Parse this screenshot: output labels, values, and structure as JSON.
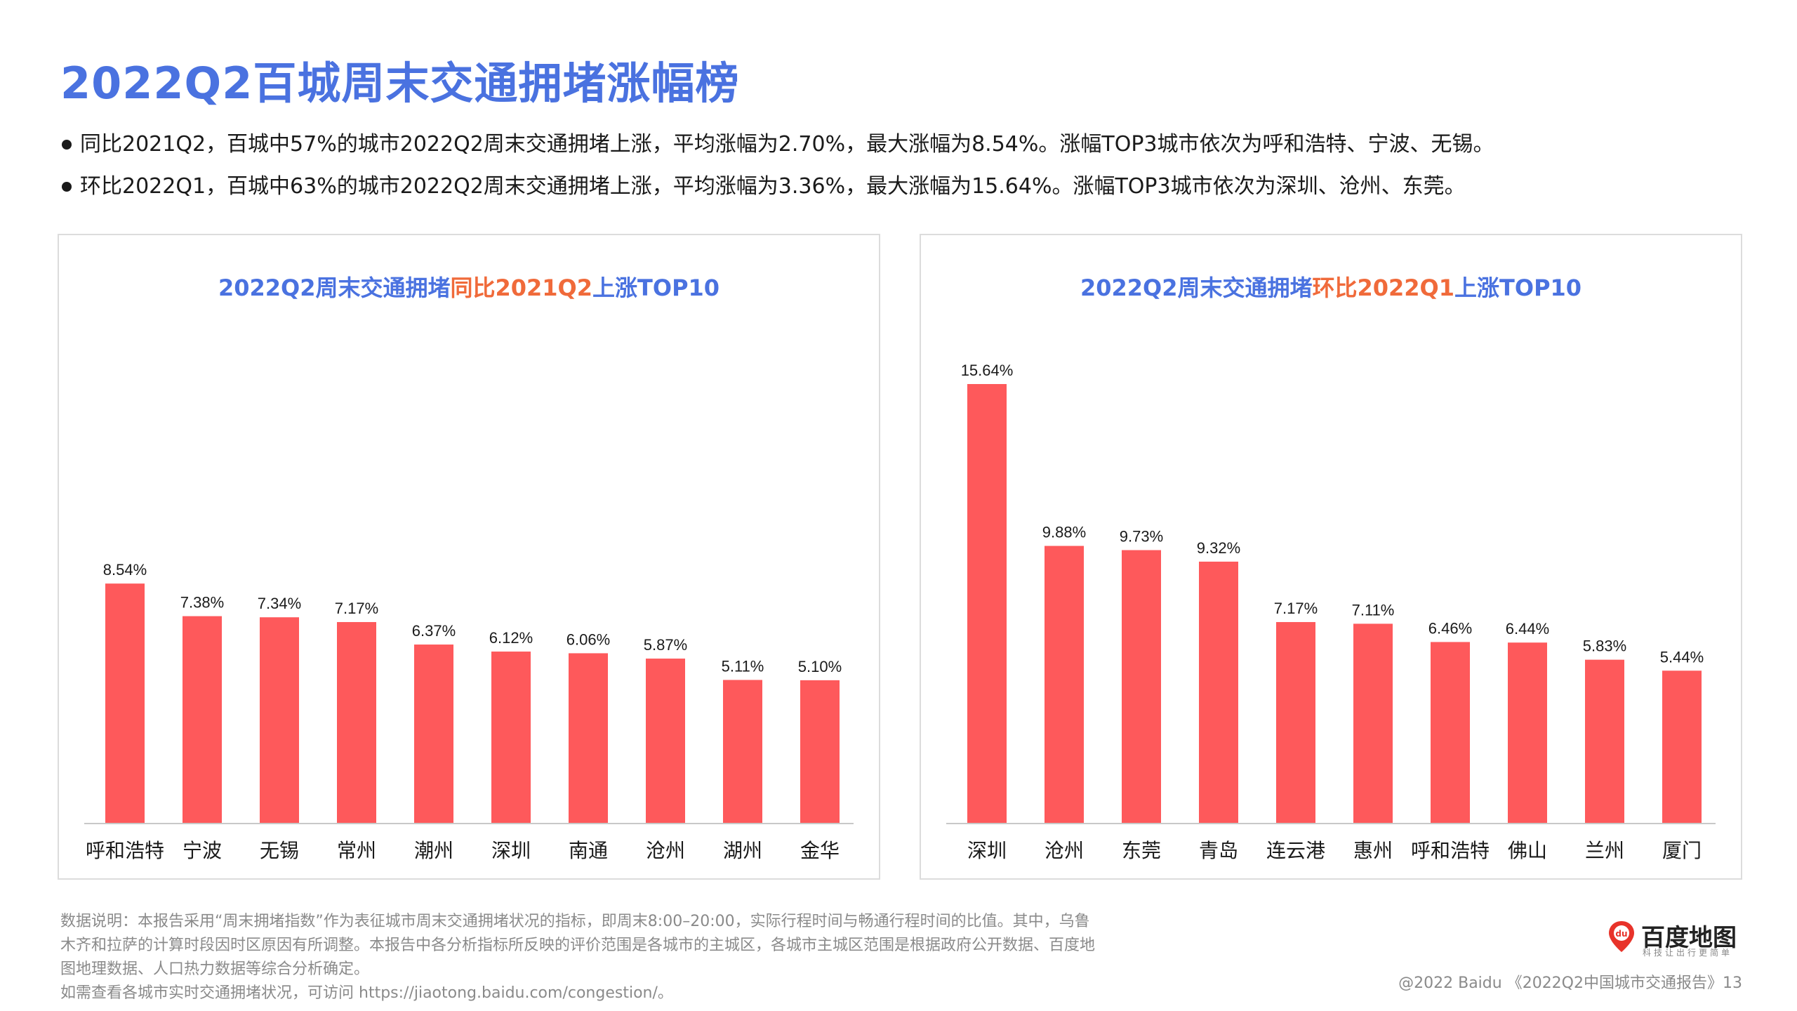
{
  "page": {
    "title": "2022Q2百城周末交通拥堵涨幅榜",
    "bullets": [
      "同比2021Q2，百城中57%的城市2022Q2周末交通拥堵上涨，平均涨幅为2.70%，最大涨幅为8.54%。涨幅TOP3城市依次为呼和浩特、宁波、无锡。",
      "环比2022Q1，百城中63%的城市2022Q2周末交通拥堵上涨，平均涨幅为3.36%，最大涨幅为15.64%。涨幅TOP3城市依次为深圳、沧州、东莞。"
    ],
    "notes": [
      "数据说明：本报告采用“周末拥堵指数”作为表征城市周末交通拥堵状况的指标，即周末8:00–20:00，实际行程时间与畅通行程时间的比值。其中，乌鲁",
      "木齐和拉萨的计算时段因时区原因有所调整。本报告中各分析指标所反映的评价范围是各城市的主城区，各城市主城区范围是根据政府公开数据、百度地",
      "图地理数据、人口热力数据等综合分析确定。",
      "如需查看各城市实时交通拥堵状况，可访问 https://jiaotong.baidu.com/congestion/。"
    ],
    "logo": {
      "name": "百度地图",
      "slogan": "科技让出行更简单",
      "badge": "du"
    },
    "footer": "@2022 Baidu 《2022Q2中国城市交通报告》13",
    "colors": {
      "bar": "#fe595b",
      "title": "#4a72e0",
      "highlight": "#f06a3a"
    }
  },
  "chart_data": [
    {
      "type": "bar",
      "title_prefix": "2022Q2周末交通拥堵",
      "title_highlight": "同比2021Q2",
      "title_suffix": "上涨TOP10",
      "categories": [
        "呼和浩特",
        "宁波",
        "无锡",
        "常州",
        "潮州",
        "深圳",
        "南通",
        "沧州",
        "湖州",
        "金华"
      ],
      "values": [
        8.54,
        7.38,
        7.34,
        7.17,
        6.37,
        6.12,
        6.06,
        5.87,
        5.11,
        5.1
      ],
      "labels": [
        "8.54%",
        "7.38%",
        "7.34%",
        "7.17%",
        "6.37%",
        "6.12%",
        "6.06%",
        "5.87%",
        "5.11%",
        "5.10%"
      ],
      "ylim": [
        0,
        15.64
      ]
    },
    {
      "type": "bar",
      "title_prefix": "2022Q2周末交通拥堵",
      "title_highlight": "环比2022Q1",
      "title_suffix": "上涨TOP10",
      "categories": [
        "深圳",
        "沧州",
        "东莞",
        "青岛",
        "连云港",
        "惠州",
        "呼和浩特",
        "佛山",
        "兰州",
        "厦门"
      ],
      "values": [
        15.64,
        9.88,
        9.73,
        9.32,
        7.17,
        7.11,
        6.46,
        6.44,
        5.83,
        5.44
      ],
      "labels": [
        "15.64%",
        "9.88%",
        "9.73%",
        "9.32%",
        "7.17%",
        "7.11%",
        "6.46%",
        "6.44%",
        "5.83%",
        "5.44%"
      ],
      "ylim": [
        0,
        15.64
      ]
    }
  ]
}
